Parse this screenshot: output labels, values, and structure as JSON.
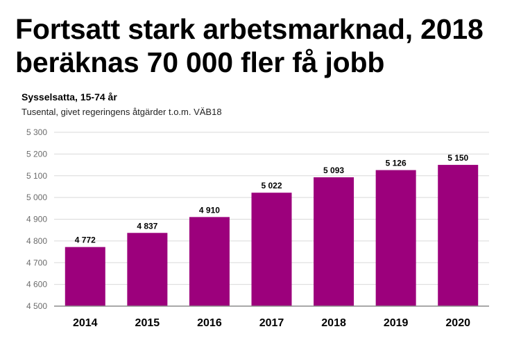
{
  "header": {
    "title_line1": "Fortsatt stark arbetsmarknad, 2018",
    "title_line2": "beräknas 70 000 fler få jobb",
    "subtitle": "Sysselsatta, 15-74 år",
    "note": "Tusental, givet regeringens åtgärder t.o.m. VÄB18"
  },
  "colors": {
    "bar": "#9c007c",
    "grid": "#d9d9d9",
    "axis": "#8c8c8c"
  },
  "chart_data": {
    "type": "bar",
    "title": "Sysselsatta, 15-74 år",
    "xlabel": "",
    "ylabel": "Tusental",
    "categories": [
      "2014",
      "2015",
      "2016",
      "2017",
      "2018",
      "2019",
      "2020"
    ],
    "values": [
      4772,
      4837,
      4910,
      5022,
      5093,
      5126,
      5150
    ],
    "value_labels": [
      "4 772",
      "4 837",
      "4 910",
      "5 022",
      "5 093",
      "5 126",
      "5 150"
    ],
    "ylim": [
      4500,
      5300
    ],
    "yticks": [
      4500,
      4600,
      4700,
      4800,
      4900,
      5000,
      5100,
      5200,
      5300
    ],
    "ytick_labels": [
      "4 500",
      "4 600",
      "4 700",
      "4 800",
      "4 900",
      "5 000",
      "5 100",
      "5 200",
      "5 300"
    ],
    "grid": true,
    "legend": "none"
  }
}
